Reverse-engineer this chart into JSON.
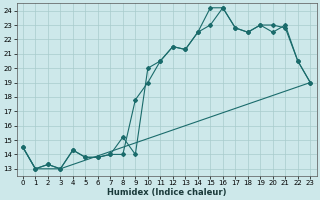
{
  "xlabel": "Humidex (Indice chaleur)",
  "bg_color": "#cde8ea",
  "grid_color": "#a8cccc",
  "line_color": "#1a6b6b",
  "xlim": [
    -0.5,
    23.5
  ],
  "ylim": [
    12.5,
    24.5
  ],
  "yticks": [
    13,
    14,
    15,
    16,
    17,
    18,
    19,
    20,
    21,
    22,
    23,
    24
  ],
  "xticks": [
    0,
    1,
    2,
    3,
    4,
    5,
    6,
    7,
    8,
    9,
    10,
    11,
    12,
    13,
    14,
    15,
    16,
    17,
    18,
    19,
    20,
    21,
    22,
    23
  ],
  "line1_x": [
    0,
    1,
    2,
    3,
    4,
    5,
    6,
    7,
    8,
    9,
    10,
    11,
    12,
    13,
    14,
    15,
    16,
    17,
    18,
    19,
    20,
    21,
    22,
    23
  ],
  "line1_y": [
    14.5,
    13.0,
    13.3,
    13.0,
    14.3,
    13.8,
    13.8,
    14.0,
    14.0,
    17.8,
    19.0,
    20.5,
    21.5,
    21.3,
    22.5,
    24.2,
    24.2,
    22.8,
    22.5,
    23.0,
    23.0,
    22.8,
    20.5,
    19.0
  ],
  "line2_x": [
    0,
    1,
    2,
    3,
    4,
    5,
    6,
    7,
    8,
    9,
    10,
    11,
    12,
    13,
    14,
    15,
    16,
    17,
    18,
    19,
    20,
    21,
    22,
    23
  ],
  "line2_y": [
    14.5,
    13.0,
    13.3,
    13.0,
    14.3,
    13.8,
    13.8,
    14.0,
    15.2,
    14.0,
    20.0,
    20.5,
    21.5,
    21.3,
    22.5,
    23.0,
    24.2,
    22.8,
    22.5,
    23.0,
    22.5,
    23.0,
    20.5,
    19.0
  ],
  "line3_x": [
    0,
    1,
    3,
    23
  ],
  "line3_y": [
    14.5,
    13.0,
    13.0,
    19.0
  ]
}
